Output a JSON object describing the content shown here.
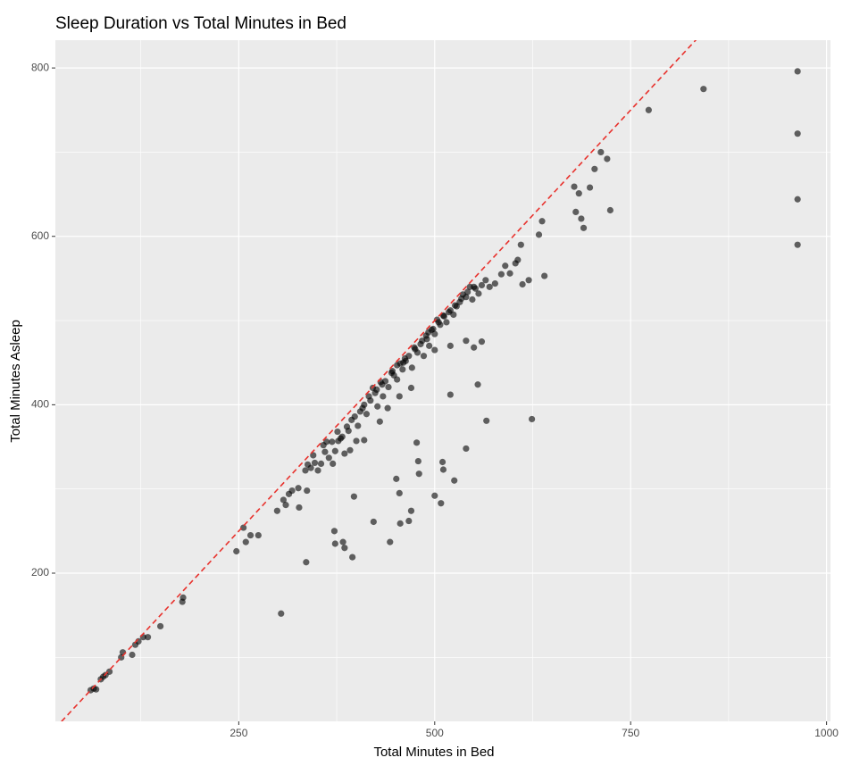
{
  "chart_data": {
    "type": "scatter",
    "title": "Sleep Duration vs Total Minutes in Bed",
    "x_label": "Total Minutes in Bed",
    "y_label": "Total Minutes Asleep",
    "xlim": [
      16,
      1005
    ],
    "ylim": [
      24,
      833
    ],
    "xticks": [
      250,
      500,
      750,
      1000
    ],
    "yticks": [
      200,
      400,
      600,
      800
    ],
    "grid": true,
    "color": "#000000",
    "opacity": 0.6,
    "reference_line": {
      "slope": 1,
      "intercept": 0,
      "color": "#e8322d",
      "dashed": true
    },
    "x": [
      61,
      65,
      68,
      74,
      77,
      80,
      85,
      100,
      102,
      114,
      118,
      122,
      128,
      134,
      150,
      178,
      179,
      247,
      256,
      259,
      265,
      275,
      299,
      307,
      310,
      314,
      318,
      326,
      327,
      335,
      337,
      338,
      342,
      347,
      351,
      355,
      360,
      365,
      369,
      373,
      377,
      382,
      385,
      390,
      394,
      398,
      402,
      405,
      410,
      413,
      418,
      421,
      424,
      427,
      431,
      434,
      437,
      441,
      445,
      448,
      452,
      456,
      459,
      463,
      467,
      471,
      475,
      478,
      482,
      486,
      489,
      493,
      496,
      500,
      503,
      507,
      511,
      515,
      520,
      524,
      528,
      532,
      536,
      540,
      545,
      548,
      552,
      556,
      560,
      565,
      570,
      577,
      585,
      590,
      596,
      603,
      606,
      610,
      612,
      620,
      633,
      637,
      640,
      678,
      680,
      684,
      687,
      690,
      698,
      704,
      712,
      720,
      724,
      773,
      843,
      963,
      963,
      963,
      963,
      304,
      336,
      372,
      373,
      383,
      385,
      395,
      397,
      422,
      443,
      451,
      455,
      456,
      467,
      470,
      477,
      479,
      480,
      500,
      508,
      510,
      511,
      520,
      525,
      540,
      555,
      566,
      624,
      550,
      560,
      500,
      520,
      540,
      470,
      455,
      440,
      430,
      410,
      400,
      392,
      380,
      370,
      345,
      358,
      362,
      376,
      388,
      408,
      416,
      426,
      433,
      446,
      452,
      462,
      474,
      484,
      492,
      498,
      505,
      512,
      518,
      526,
      534,
      542,
      550,
      490,
      460
    ],
    "values": [
      61,
      63,
      62,
      74,
      77,
      79,
      83,
      100,
      106,
      103,
      115,
      119,
      124,
      124,
      137,
      166,
      171,
      226,
      254,
      237,
      245,
      245,
      274,
      287,
      281,
      294,
      298,
      301,
      278,
      322,
      298,
      329,
      325,
      331,
      322,
      330,
      344,
      337,
      356,
      345,
      357,
      362,
      342,
      369,
      382,
      386,
      375,
      392,
      400,
      389,
      405,
      420,
      414,
      398,
      427,
      410,
      428,
      421,
      438,
      435,
      430,
      449,
      442,
      452,
      458,
      444,
      466,
      462,
      472,
      458,
      482,
      470,
      489,
      484,
      501,
      495,
      506,
      498,
      512,
      507,
      517,
      522,
      531,
      528,
      540,
      525,
      538,
      532,
      542,
      548,
      540,
      544,
      555,
      565,
      556,
      568,
      572,
      590,
      543,
      548,
      602,
      618,
      553,
      659,
      629,
      651,
      621,
      610,
      658,
      680,
      700,
      692,
      631,
      750,
      775,
      796,
      722,
      644,
      590,
      152,
      213,
      250,
      235,
      237,
      230,
      219,
      291,
      261,
      237,
      312,
      295,
      259,
      262,
      274,
      355,
      333,
      318,
      292,
      283,
      332,
      323,
      412,
      310,
      348,
      424,
      381,
      383,
      468,
      475,
      465,
      470,
      476,
      420,
      410,
      396,
      380,
      358,
      357,
      346,
      360,
      330,
      340,
      352,
      356,
      368,
      374,
      396,
      410,
      418,
      424,
      440,
      447,
      455,
      468,
      476,
      486,
      490,
      498,
      505,
      510,
      518,
      526,
      534,
      540,
      478,
      450
    ]
  }
}
